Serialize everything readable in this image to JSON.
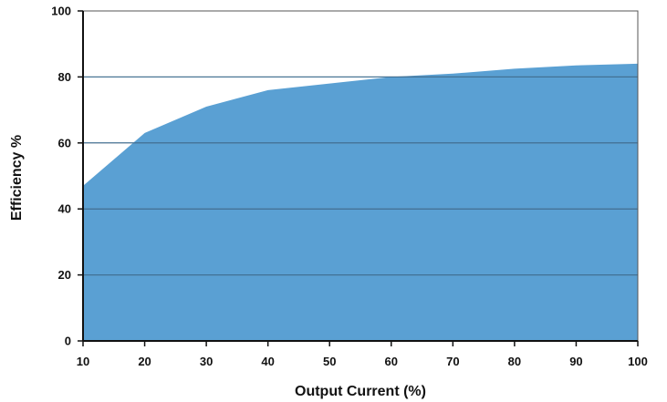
{
  "chart_data": {
    "type": "area",
    "title": "",
    "xlabel": "Output Current (%)",
    "ylabel": "Efficiency %",
    "xlim": [
      10,
      100
    ],
    "ylim": [
      0,
      100
    ],
    "xticks": [
      "10",
      "20",
      "30",
      "40",
      "50",
      "60",
      "70",
      "80",
      "90",
      "100"
    ],
    "yticks": [
      "0",
      "20",
      "40",
      "60",
      "80",
      "100"
    ],
    "grid": "horizontal",
    "fill_color": "#5aa0d3",
    "x": [
      10,
      20,
      30,
      40,
      50,
      60,
      70,
      80,
      90,
      100
    ],
    "series": [
      {
        "values": [
          47,
          63,
          71,
          76,
          78,
          80,
          81,
          82.5,
          83.5,
          84
        ]
      }
    ]
  }
}
